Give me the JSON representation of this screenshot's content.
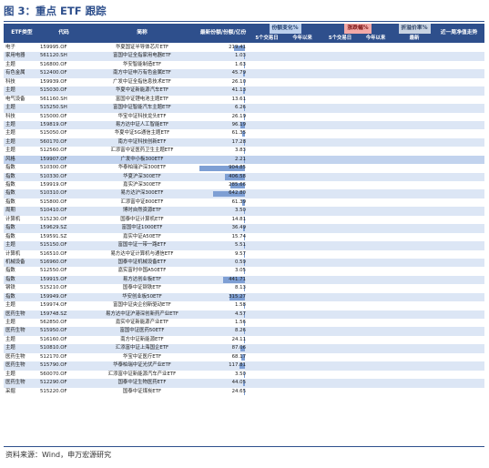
{
  "figure": {
    "title": "图 3：重点 ETF 跟踪",
    "source": "资料来源：Wind，申万宏源研究"
  },
  "columns": {
    "type": "ETF类型",
    "code": "代码",
    "name": "简称",
    "share": "最新份额/份额/亿份",
    "share_change_group": "份额变化%",
    "share_change_5d": "5个交易日",
    "share_change_ytd": "今年以来",
    "price_change_group": "涨跌幅%",
    "price_change_5d": "5个交易日",
    "price_change_ytd": "今年以来",
    "discount_group": "折溢价率%",
    "discount_latest": "最新",
    "trend": "近一周净值走势"
  },
  "colors": {
    "header": "#2e4f8c",
    "positive": "#e8574f",
    "negative": "#5c86c6",
    "row_alt": "#dce6f5"
  },
  "rows": [
    {
      "type": "电子",
      "code": "159995.OF",
      "name": "华夏国证半导体芯片ETF",
      "share": "219.41",
      "share_bar": 0.24,
      "sc5": 1.25,
      "scytd": 3.02,
      "p5": -1.41,
      "pytd": -0.09,
      "disc": -0.03,
      "trend": [
        3,
        4,
        3,
        5,
        6,
        5,
        7
      ]
    },
    {
      "type": "家用电器",
      "code": "561120.SH",
      "name": "富国中证全指家用电器ETF",
      "share": "1.03",
      "share_bar": 0.01,
      "sc5": -4.2,
      "scytd": -5.5,
      "p5": -3.63,
      "pytd": 0.15,
      "disc": 0.09,
      "trend": [
        4,
        5,
        4,
        3,
        4,
        5,
        5
      ]
    },
    {
      "type": "主题",
      "code": "516800.OF",
      "name": "华安智能制造ETF",
      "share": "1.63",
      "share_bar": 0.01,
      "sc5": -2.4,
      "scytd": -3.5,
      "p5": -2.12,
      "pytd": 4.43,
      "disc": 0.68,
      "trend": [
        3,
        3,
        4,
        5,
        4,
        6,
        6
      ]
    },
    {
      "type": "有色金属",
      "code": "512400.OF",
      "name": "南方中证申万有色金属ETF",
      "share": "45.79",
      "share_bar": 0.05,
      "sc5": 2.3,
      "scytd": 2.0,
      "p5": 1.75,
      "pytd": 1.58,
      "disc": -0.05,
      "trend": [
        5,
        4,
        6,
        5,
        7,
        6,
        7
      ]
    },
    {
      "type": "科技",
      "code": "159939.OF",
      "name": "广发中证全指信息技术ETF",
      "share": "26.10",
      "share_bar": 0.03,
      "sc5": 0.8,
      "scytd": 2.8,
      "p5": -0.23,
      "pytd": -0.52,
      "disc": 0.0,
      "trend": [
        3,
        5,
        4,
        4,
        5,
        5,
        6
      ]
    },
    {
      "type": "主题",
      "code": "515030.OF",
      "name": "华夏中证新能源汽车ETF",
      "share": "41.13",
      "share_bar": 0.05,
      "sc5": -0.2,
      "scytd": 1.0,
      "p5": 0.96,
      "pytd": 4.85,
      "disc": -0.18,
      "trend": [
        4,
        3,
        4,
        5,
        6,
        5,
        7
      ]
    },
    {
      "type": "电气设备",
      "code": "561160.SH",
      "name": "富国中证锂电池主题ETF",
      "share": "13.61",
      "share_bar": 0.02,
      "sc5": -1.1,
      "scytd": -0.7,
      "p5": 0.96,
      "pytd": 4.57,
      "disc": -0.11,
      "trend": [
        3,
        4,
        5,
        4,
        5,
        6,
        6
      ]
    },
    {
      "type": "主题",
      "code": "515250.SH",
      "name": "富国中证智能汽车主题ETF",
      "share": "6.26",
      "share_bar": 0.01,
      "sc5": -2.0,
      "scytd": -5.6,
      "p5": 0.62,
      "pytd": 6.92,
      "disc": 0.22,
      "trend": [
        3,
        3,
        5,
        4,
        6,
        7,
        7
      ]
    },
    {
      "type": "科技",
      "code": "515000.OF",
      "name": "华宝中证科技龙头ETF",
      "share": "26.19",
      "share_bar": 0.03,
      "sc5": 0.8,
      "scytd": 2.8,
      "p5": 0.47,
      "pytd": 2.56,
      "disc": -0.06,
      "trend": [
        4,
        5,
        4,
        5,
        5,
        6,
        6
      ]
    },
    {
      "type": "主题",
      "code": "159819.OF",
      "name": "易方达中证人工智能ETF",
      "share": "96.19",
      "share_bar": 0.11,
      "sc5": 0.7,
      "scytd": 3.6,
      "p5": 0.25,
      "pytd": 0.35,
      "disc": -0.29,
      "trend": [
        5,
        4,
        5,
        6,
        5,
        6,
        5
      ]
    },
    {
      "type": "主题",
      "code": "515050.OF",
      "name": "华夏中证5G通信主题ETF",
      "share": "61.35",
      "share_bar": 0.07,
      "sc5": 0.4,
      "scytd": 1.1,
      "p5": 0.13,
      "pytd": 0.96,
      "disc": -0.06,
      "trend": [
        4,
        5,
        5,
        4,
        6,
        5,
        6
      ]
    },
    {
      "type": "主题",
      "code": "560170.OF",
      "name": "南方中证科技创新ETF",
      "share": "17.28",
      "share_bar": 0.02,
      "sc5": 0.4,
      "scytd": 2.1,
      "p5": 0.08,
      "pytd": -1.95,
      "disc": -0.09,
      "trend": [
        5,
        4,
        4,
        5,
        4,
        5,
        5
      ]
    },
    {
      "type": "主题",
      "code": "512560.OF",
      "name": "汇添富中证医药卫生主题ETF",
      "share": "3.83",
      "share_bar": 0.01,
      "sc5": -3.0,
      "scytd": -3.0,
      "p5": 0.11,
      "pytd": 1.36,
      "disc": 0.43,
      "trend": [
        4,
        4,
        5,
        6,
        5,
        6,
        7
      ]
    },
    {
      "type": "风格",
      "code": "159907.OF",
      "name": "广发中小板300ETF",
      "share": "2.21",
      "share_bar": 0.01,
      "sc5": 0.0,
      "scytd": 0.0,
      "p5": 0.62,
      "pytd": 0.54,
      "disc": 0.0,
      "trend": [
        4,
        4,
        4,
        5,
        5,
        5,
        5
      ],
      "hl": true
    },
    {
      "type": "指数",
      "code": "510300.OF",
      "name": "华泰柏瑞沪深300ETF",
      "share": "904.85",
      "share_bar": 1.0,
      "sc5": 0.1,
      "scytd": 1.2,
      "p5": 1.05,
      "pytd": 5.02,
      "disc": 0.0,
      "trend": [
        3,
        4,
        4,
        5,
        5,
        6,
        6
      ]
    },
    {
      "type": "指数",
      "code": "510330.OF",
      "name": "华夏沪深300ETF",
      "share": "406.58",
      "share_bar": 0.45,
      "sc5": 1.8,
      "scytd": 2.1,
      "p5": 1.05,
      "pytd": 5.0,
      "disc": -0.06,
      "trend": [
        3,
        4,
        4,
        5,
        5,
        6,
        6
      ]
    },
    {
      "type": "指数",
      "code": "159919.OF",
      "name": "嘉实沪深300ETF",
      "share": "285.66",
      "share_bar": 0.32,
      "sc5": 0.1,
      "scytd": -0.2,
      "p5": 1.05,
      "pytd": 4.97,
      "disc": -0.06,
      "trend": [
        3,
        4,
        4,
        5,
        5,
        6,
        6
      ]
    },
    {
      "type": "指数",
      "code": "510310.OF",
      "name": "易方达沪深300ETF",
      "share": "642.80",
      "share_bar": 0.71,
      "sc5": 0.4,
      "scytd": 2.9,
      "p5": 1.04,
      "pytd": 4.98,
      "disc": 0.01,
      "trend": [
        3,
        4,
        4,
        5,
        5,
        6,
        6
      ]
    },
    {
      "type": "指数",
      "code": "515800.OF",
      "name": "汇添富中证800ETF",
      "share": "61.39",
      "share_bar": 0.07,
      "sc5": -0.5,
      "scytd": -0.2,
      "p5": 1.06,
      "pytd": 5.06,
      "disc": -0.07,
      "trend": [
        3,
        4,
        4,
        5,
        5,
        6,
        6
      ]
    },
    {
      "type": "周期",
      "code": "510410.OF",
      "name": "博时自然资源ETF",
      "share": "3.50",
      "share_bar": 0.01,
      "sc5": -0.6,
      "scytd": 0.0,
      "p5": -1.24,
      "pytd": -2.08,
      "disc": -0.04,
      "trend": [
        5,
        4,
        3,
        4,
        3,
        3,
        3
      ]
    },
    {
      "type": "计算机",
      "code": "515230.OF",
      "name": "国泰中证计算机ETF",
      "share": "14.81",
      "share_bar": 0.02,
      "sc5": 0.9,
      "scytd": 10.3,
      "p5": -1.33,
      "pytd": -1.81,
      "disc": 0.33,
      "trend": [
        5,
        4,
        5,
        4,
        3,
        4,
        4
      ]
    },
    {
      "type": "指数",
      "code": "159629.SZ",
      "name": "富国中证1000ETF",
      "share": "36.49",
      "share_bar": 0.04,
      "sc5": -1.3,
      "scytd": 1.0,
      "p5": -0.75,
      "pytd": 0.98,
      "disc": 0.17,
      "trend": [
        5,
        4,
        4,
        5,
        4,
        5,
        5
      ]
    },
    {
      "type": "指数",
      "code": "159591.SZ",
      "name": "嘉实中证A50ETF",
      "share": "15.74",
      "share_bar": 0.02,
      "sc5": -0.3,
      "scytd": -4.7,
      "p5": 1.04,
      "pytd": 1.1,
      "disc": 0.05,
      "trend": [
        3,
        4,
        5,
        4,
        5,
        6,
        6
      ]
    },
    {
      "type": "主题",
      "code": "515150.OF",
      "name": "富国中证一带一路ETF",
      "share": "5.51",
      "share_bar": 0.01,
      "sc5": 0.0,
      "scytd": -4.5,
      "p5": -1.64,
      "pytd": 4.11,
      "disc": 0.11,
      "trend": [
        5,
        6,
        5,
        4,
        4,
        3,
        4
      ]
    },
    {
      "type": "计算机",
      "code": "516510.OF",
      "name": "易方达中证计算机与通信ETF",
      "share": "9.57",
      "share_bar": 0.01,
      "sc5": 0.0,
      "scytd": 7.5,
      "p5": -1.79,
      "pytd": 0.53,
      "disc": 0.35,
      "trend": [
        5,
        5,
        4,
        4,
        3,
        4,
        3
      ]
    },
    {
      "type": "机械设备",
      "code": "516960.OF",
      "name": "国泰中证机械设备ETF",
      "share": "0.59",
      "share_bar": 0.01,
      "sc5": 0.0,
      "scytd": 0.0,
      "p5": -0.84,
      "pytd": -0.72,
      "disc": -0.18,
      "trend": [
        4,
        5,
        4,
        4,
        4,
        3,
        4
      ]
    },
    {
      "type": "指数",
      "code": "512550.OF",
      "name": "嘉实富时中国A50ETF",
      "share": "3.05",
      "share_bar": 0.01,
      "sc5": 5.5,
      "scytd": 5.5,
      "p5": 1.06,
      "pytd": 1.24,
      "disc": -0.04,
      "trend": [
        3,
        4,
        5,
        5,
        5,
        6,
        6
      ]
    },
    {
      "type": "指数",
      "code": "159915.OF",
      "name": "易方达创业板ETF",
      "share": "441.71",
      "share_bar": 0.49,
      "sc5": 0.5,
      "scytd": 1.7,
      "p5": 2.02,
      "pytd": 0.08,
      "disc": -0.09,
      "trend": [
        3,
        4,
        4,
        5,
        6,
        6,
        7
      ]
    },
    {
      "type": "钢铁",
      "code": "515210.OF",
      "name": "国泰中证钢铁ETF",
      "share": "8.13",
      "share_bar": 0.01,
      "sc5": 2.5,
      "scytd": 10.1,
      "p5": -2.23,
      "pytd": 0.28,
      "disc": 0.28,
      "trend": [
        5,
        5,
        4,
        3,
        3,
        3,
        3
      ]
    },
    {
      "type": "指数",
      "code": "159949.OF",
      "name": "华安创业板50ETF",
      "share": "315.27",
      "share_bar": 0.35,
      "sc5": -0.3,
      "scytd": 1.4,
      "p5": 2.34,
      "pytd": 0.19,
      "disc": -0.14,
      "trend": [
        3,
        4,
        4,
        5,
        6,
        6,
        7
      ]
    },
    {
      "type": "主题",
      "code": "159974.OF",
      "name": "富国中证央企创新驱动ETF",
      "share": "1.58",
      "share_bar": 0.01,
      "sc5": -2.5,
      "scytd": -1.2,
      "p5": 2.37,
      "pytd": 2.59,
      "disc": -0.05,
      "trend": [
        3,
        4,
        5,
        5,
        6,
        6,
        7
      ]
    },
    {
      "type": "医药生物",
      "code": "159748.SZ",
      "name": "易方达中证沪港深创新药产业ETF",
      "share": "4.57",
      "share_bar": 0.01,
      "sc5": -0.4,
      "scytd": -2.7,
      "p5": 2.45,
      "pytd": 1.8,
      "disc": -0.07,
      "trend": [
        3,
        4,
        4,
        5,
        6,
        6,
        7
      ]
    },
    {
      "type": "主题",
      "code": "562850.OF",
      "name": "嘉实中证新能源产业ETF",
      "share": "1.56",
      "share_bar": 0.01,
      "sc5": -1.9,
      "scytd": -1.9,
      "p5": 2.67,
      "pytd": 2.6,
      "disc": 0.11,
      "trend": [
        3,
        4,
        4,
        5,
        6,
        6,
        7
      ]
    },
    {
      "type": "医药生物",
      "code": "515950.OF",
      "name": "富国中证医药50ETF",
      "share": "8.26",
      "share_bar": 0.01,
      "sc5": 0.5,
      "scytd": 0.2,
      "p5": 2.75,
      "pytd": 4.52,
      "disc": 0.25,
      "trend": [
        3,
        3,
        4,
        5,
        6,
        6,
        7
      ]
    },
    {
      "type": "主题",
      "code": "516160.OF",
      "name": "南方中证新能源ETF",
      "share": "24.11",
      "share_bar": 0.03,
      "sc5": 0.5,
      "scytd": 1.7,
      "p5": 2.78,
      "pytd": 0.99,
      "disc": -0.19,
      "trend": [
        3,
        4,
        4,
        5,
        6,
        6,
        7
      ]
    },
    {
      "type": "主题",
      "code": "510810.OF",
      "name": "汇添富中证上海国企ETF",
      "share": "87.06",
      "share_bar": 0.1,
      "sc5": 0.0,
      "scytd": 2.1,
      "p5": 2.78,
      "pytd": 0.13,
      "disc": -0.07,
      "trend": [
        3,
        4,
        5,
        5,
        6,
        6,
        7
      ]
    },
    {
      "type": "医药生物",
      "code": "512170.OF",
      "name": "华宝中证医疗ETF",
      "share": "68.17",
      "share_bar": 0.08,
      "sc5": -0.2,
      "scytd": 0.4,
      "p5": 2.94,
      "pytd": -1.05,
      "disc": -0.04,
      "trend": [
        3,
        4,
        4,
        5,
        6,
        6,
        7
      ]
    },
    {
      "type": "医药生物",
      "code": "515790.OF",
      "name": "华泰柏瑞中证光伏产业ETF",
      "share": "117.81",
      "share_bar": 0.13,
      "sc5": -1.5,
      "scytd": -1.1,
      "p5": 3.16,
      "pytd": 1.08,
      "disc": 0.02,
      "trend": [
        3,
        4,
        4,
        5,
        6,
        6,
        7
      ]
    },
    {
      "type": "主题",
      "code": "560070.OF",
      "name": "汇添富中证新能源汽车产业ETF",
      "share": "3.50",
      "share_bar": 0.01,
      "sc5": -0.9,
      "scytd": -0.9,
      "p5": 3.22,
      "pytd": 2.21,
      "disc": 0.11,
      "trend": [
        3,
        4,
        5,
        5,
        6,
        6,
        7
      ]
    },
    {
      "type": "医药生物",
      "code": "512290.OF",
      "name": "国泰中证生物医药ETF",
      "share": "44.05",
      "share_bar": 0.05,
      "sc5": -0.2,
      "scytd": -0.7,
      "p5": 3.35,
      "pytd": 0.94,
      "disc": -0.05,
      "trend": [
        3,
        4,
        4,
        5,
        6,
        6,
        7
      ]
    },
    {
      "type": "采掘",
      "code": "515220.OF",
      "name": "国泰中证煤炭ETF",
      "share": "24.65",
      "share_bar": 0.03,
      "sc5": 0.2,
      "scytd": -2.5,
      "p5": 4.71,
      "pytd": -7.49,
      "disc": -0.1,
      "trend": [
        3,
        3,
        4,
        5,
        6,
        7,
        7
      ]
    }
  ]
}
